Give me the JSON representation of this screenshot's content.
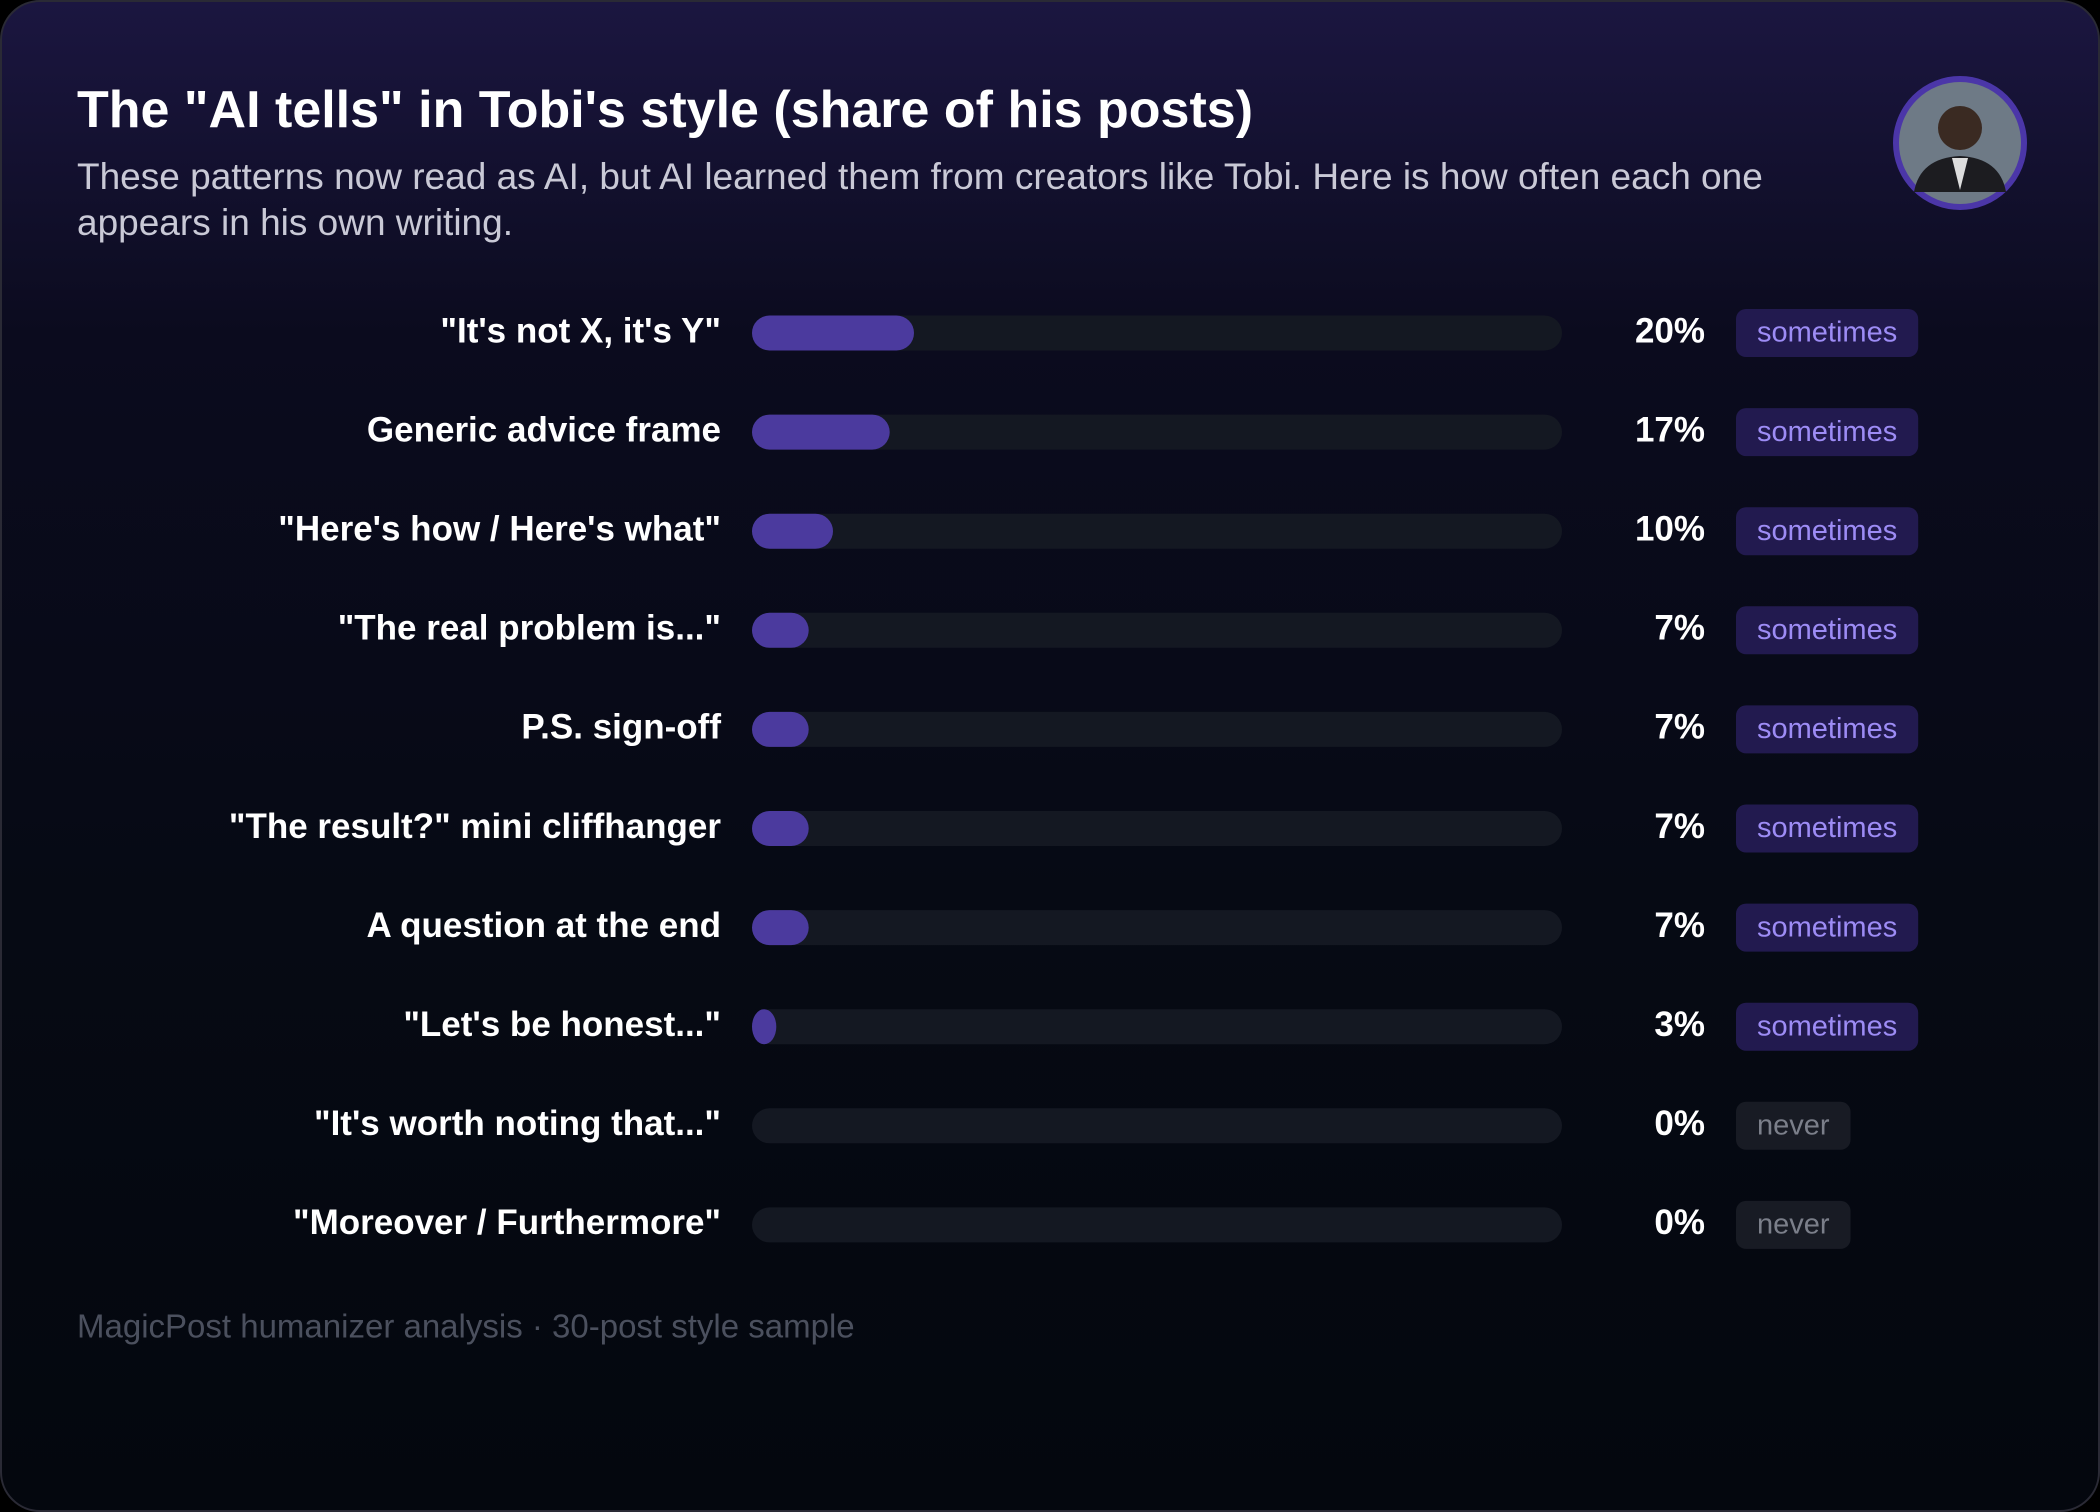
{
  "chart_data": {
    "type": "hbar",
    "title": "The \"AI tells\" in Tobi's style (share of his posts)",
    "subtitle": "These patterns now read as AI, but AI learned them from creators like Tobi. Here is how often each one appears in his own writing.",
    "categories": [
      "\"It's not X, it's Y\"",
      "Generic advice frame",
      "\"Here's how / Here's what\"",
      "\"The real problem is...\"",
      "P.S. sign-off",
      "\"The result?\" mini cliffhanger",
      "A question at the end",
      "\"Let's be honest...\"",
      "\"It's worth noting that...\"",
      "\"Moreover / Furthermore\""
    ],
    "values": [
      20,
      17,
      10,
      7,
      7,
      7,
      7,
      3,
      0,
      0
    ],
    "value_labels": [
      "20%",
      "17%",
      "10%",
      "7%",
      "7%",
      "7%",
      "7%",
      "3%",
      "0%",
      "0%"
    ],
    "tags": [
      "sometimes",
      "sometimes",
      "sometimes",
      "sometimes",
      "sometimes",
      "sometimes",
      "sometimes",
      "sometimes",
      "never",
      "never"
    ],
    "color": "#4b3a9e",
    "xlim": [
      0,
      100
    ],
    "source": "MagicPost humanizer analysis · 30-post style sample"
  }
}
